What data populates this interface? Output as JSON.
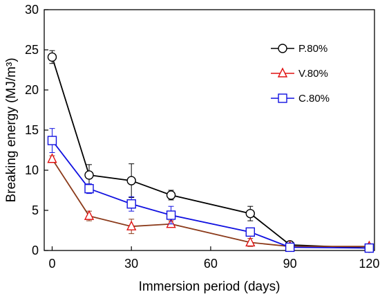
{
  "chart_data": {
    "type": "line",
    "xlabel": "Immersion period (days)",
    "ylabel": "Breaking energy (MJ/m³)",
    "xlim": [
      -3,
      122
    ],
    "ylim": [
      0,
      30
    ],
    "xticks": [
      0,
      30,
      60,
      90,
      120
    ],
    "yticks": [
      0,
      5,
      10,
      15,
      20,
      25,
      30
    ],
    "x": [
      0,
      14,
      30,
      45,
      75,
      90,
      120
    ],
    "legend_position": "top-right",
    "grid": false,
    "series": [
      {
        "name": "P.80%",
        "color": "#000000",
        "marker": "circle",
        "values": [
          24.1,
          9.4,
          8.7,
          6.9,
          4.6,
          0.7,
          0.3
        ],
        "errors": [
          0.8,
          1.3,
          2.1,
          0.6,
          0.9,
          0.3,
          0.1
        ]
      },
      {
        "name": "V.80%",
        "color": "#e01010",
        "line_color": "#8b3a1a",
        "marker": "triangle",
        "values": [
          11.4,
          4.3,
          3.0,
          3.3,
          1.0,
          0.5,
          0.5
        ],
        "errors": [
          0.4,
          0.6,
          0.9,
          0.4,
          0.5,
          0.2,
          0.1
        ]
      },
      {
        "name": "C.80%",
        "color": "#1010e0",
        "marker": "square",
        "values": [
          13.7,
          7.7,
          5.8,
          4.4,
          2.3,
          0.4,
          0.3
        ],
        "errors": [
          1.5,
          0.6,
          0.9,
          1.1,
          0.3,
          0.2,
          0.1
        ]
      }
    ]
  }
}
